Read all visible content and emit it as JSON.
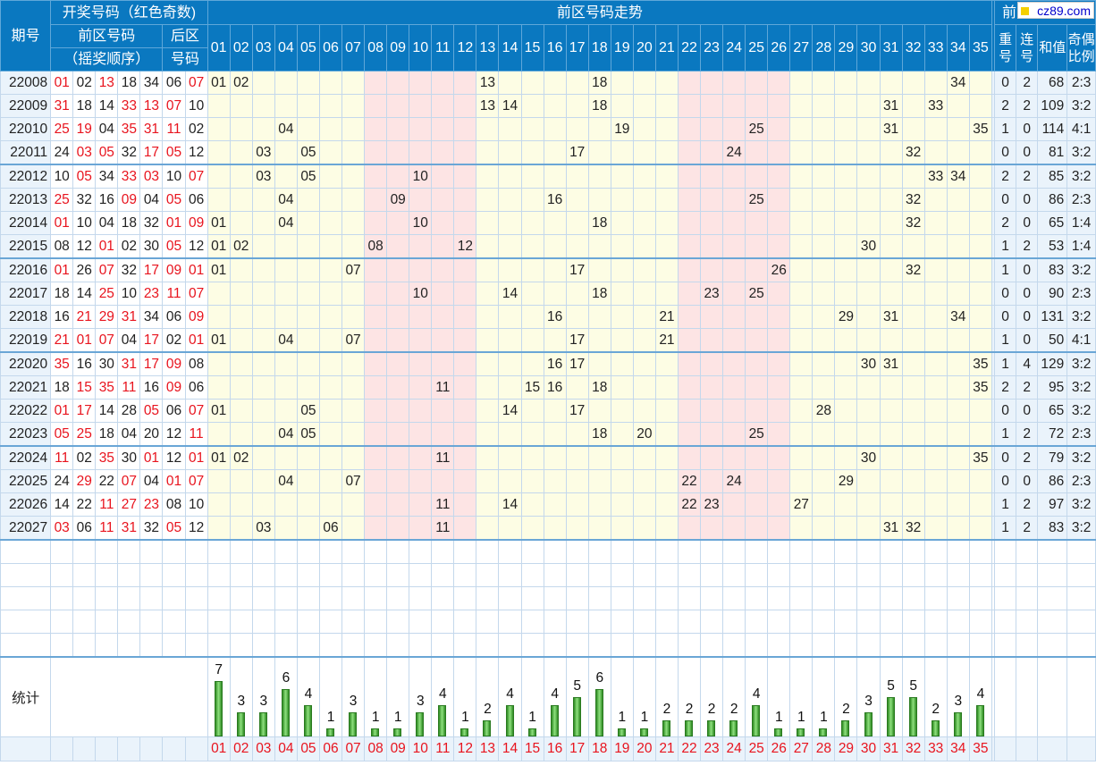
{
  "header": {
    "period": "期号",
    "draw_title": "开奖号码（红色奇数)",
    "front_title": "前区号码",
    "front_sub": "（摇奖顺序）",
    "back_title": "后区",
    "back_sub": "号码",
    "trend_title": "前区号码走势",
    "analysis_title": "前区号码分析",
    "repeat_1": "重",
    "repeat_2": "号",
    "consec_1": "连",
    "consec_2": "号",
    "sum": "和值",
    "ratio_1": "奇偶",
    "ratio_2": "比例"
  },
  "numbers": [
    "01",
    "02",
    "03",
    "04",
    "05",
    "06",
    "07",
    "08",
    "09",
    "10",
    "11",
    "12",
    "13",
    "14",
    "15",
    "16",
    "17",
    "18",
    "19",
    "20",
    "21",
    "22",
    "23",
    "24",
    "25",
    "26",
    "27",
    "28",
    "29",
    "30",
    "31",
    "32",
    "33",
    "34",
    "35"
  ],
  "rows": [
    {
      "period": "22008",
      "front": [
        "01",
        "02",
        "13",
        "18",
        "34"
      ],
      "back": [
        "06",
        "07"
      ],
      "repeat": "0",
      "consec": "2",
      "sum": "68",
      "ratio": "2:3"
    },
    {
      "period": "22009",
      "front": [
        "31",
        "18",
        "14",
        "33",
        "13"
      ],
      "back": [
        "07",
        "10"
      ],
      "repeat": "2",
      "consec": "2",
      "sum": "109",
      "ratio": "3:2"
    },
    {
      "period": "22010",
      "front": [
        "25",
        "19",
        "04",
        "35",
        "31"
      ],
      "back": [
        "11",
        "02"
      ],
      "repeat": "1",
      "consec": "0",
      "sum": "114",
      "ratio": "4:1"
    },
    {
      "period": "22011",
      "front": [
        "24",
        "03",
        "05",
        "32",
        "17"
      ],
      "back": [
        "05",
        "12"
      ],
      "repeat": "0",
      "consec": "0",
      "sum": "81",
      "ratio": "3:2"
    },
    {
      "period": "22012",
      "front": [
        "10",
        "05",
        "34",
        "33",
        "03"
      ],
      "back": [
        "10",
        "07"
      ],
      "repeat": "2",
      "consec": "2",
      "sum": "85",
      "ratio": "3:2"
    },
    {
      "period": "22013",
      "front": [
        "25",
        "32",
        "16",
        "09",
        "04"
      ],
      "back": [
        "05",
        "06"
      ],
      "repeat": "0",
      "consec": "0",
      "sum": "86",
      "ratio": "2:3"
    },
    {
      "period": "22014",
      "front": [
        "01",
        "10",
        "04",
        "18",
        "32"
      ],
      "back": [
        "01",
        "09"
      ],
      "repeat": "2",
      "consec": "0",
      "sum": "65",
      "ratio": "1:4"
    },
    {
      "period": "22015",
      "front": [
        "08",
        "12",
        "01",
        "02",
        "30"
      ],
      "back": [
        "05",
        "12"
      ],
      "repeat": "1",
      "consec": "2",
      "sum": "53",
      "ratio": "1:4"
    },
    {
      "period": "22016",
      "front": [
        "01",
        "26",
        "07",
        "32",
        "17"
      ],
      "back": [
        "09",
        "01"
      ],
      "repeat": "1",
      "consec": "0",
      "sum": "83",
      "ratio": "3:2"
    },
    {
      "period": "22017",
      "front": [
        "18",
        "14",
        "25",
        "10",
        "23"
      ],
      "back": [
        "11",
        "07"
      ],
      "repeat": "0",
      "consec": "0",
      "sum": "90",
      "ratio": "2:3"
    },
    {
      "period": "22018",
      "front": [
        "16",
        "21",
        "29",
        "31",
        "34"
      ],
      "back": [
        "06",
        "09"
      ],
      "repeat": "0",
      "consec": "0",
      "sum": "131",
      "ratio": "3:2"
    },
    {
      "period": "22019",
      "front": [
        "21",
        "01",
        "07",
        "04",
        "17"
      ],
      "back": [
        "02",
        "01"
      ],
      "repeat": "1",
      "consec": "0",
      "sum": "50",
      "ratio": "4:1"
    },
    {
      "period": "22020",
      "front": [
        "35",
        "16",
        "30",
        "31",
        "17"
      ],
      "back": [
        "09",
        "08"
      ],
      "repeat": "1",
      "consec": "4",
      "sum": "129",
      "ratio": "3:2"
    },
    {
      "period": "22021",
      "front": [
        "18",
        "15",
        "35",
        "11",
        "16"
      ],
      "back": [
        "09",
        "06"
      ],
      "repeat": "2",
      "consec": "2",
      "sum": "95",
      "ratio": "3:2"
    },
    {
      "period": "22022",
      "front": [
        "01",
        "17",
        "14",
        "28",
        "05"
      ],
      "back": [
        "06",
        "07"
      ],
      "repeat": "0",
      "consec": "0",
      "sum": "65",
      "ratio": "3:2"
    },
    {
      "period": "22023",
      "front": [
        "05",
        "25",
        "18",
        "04",
        "20"
      ],
      "back": [
        "12",
        "11"
      ],
      "repeat": "1",
      "consec": "2",
      "sum": "72",
      "ratio": "2:3"
    },
    {
      "period": "22024",
      "front": [
        "11",
        "02",
        "35",
        "30",
        "01"
      ],
      "back": [
        "12",
        "01"
      ],
      "repeat": "0",
      "consec": "2",
      "sum": "79",
      "ratio": "3:2"
    },
    {
      "period": "22025",
      "front": [
        "24",
        "29",
        "22",
        "07",
        "04"
      ],
      "back": [
        "01",
        "07"
      ],
      "repeat": "0",
      "consec": "0",
      "sum": "86",
      "ratio": "2:3"
    },
    {
      "period": "22026",
      "front": [
        "14",
        "22",
        "11",
        "27",
        "23"
      ],
      "back": [
        "08",
        "10"
      ],
      "repeat": "1",
      "consec": "2",
      "sum": "97",
      "ratio": "3:2"
    },
    {
      "period": "22027",
      "front": [
        "03",
        "06",
        "11",
        "31",
        "32"
      ],
      "back": [
        "05",
        "12"
      ],
      "repeat": "1",
      "consec": "2",
      "sum": "83",
      "ratio": "3:2"
    }
  ],
  "stats_label": "统计",
  "chart_data": {
    "type": "bar",
    "categories": [
      "01",
      "02",
      "03",
      "04",
      "05",
      "06",
      "07",
      "08",
      "09",
      "10",
      "11",
      "12",
      "13",
      "14",
      "15",
      "16",
      "17",
      "18",
      "19",
      "20",
      "21",
      "22",
      "23",
      "24",
      "25",
      "26",
      "27",
      "28",
      "29",
      "30",
      "31",
      "32",
      "33",
      "34",
      "35"
    ],
    "values": [
      7,
      3,
      3,
      6,
      4,
      1,
      3,
      1,
      1,
      3,
      4,
      1,
      2,
      4,
      1,
      4,
      5,
      6,
      1,
      1,
      2,
      2,
      2,
      2,
      4,
      1,
      1,
      1,
      2,
      3,
      5,
      5,
      2,
      3,
      4
    ],
    "title": "",
    "xlabel": "",
    "ylabel": "",
    "ylim": [
      0,
      7
    ]
  },
  "colors": {
    "header": "#0a78c0",
    "odd_number": "#e8141e",
    "zone_yellow": "#fdfde4",
    "zone_pink": "#fde4e4",
    "bar": "#3fa83a"
  },
  "logo": "cz89.com"
}
